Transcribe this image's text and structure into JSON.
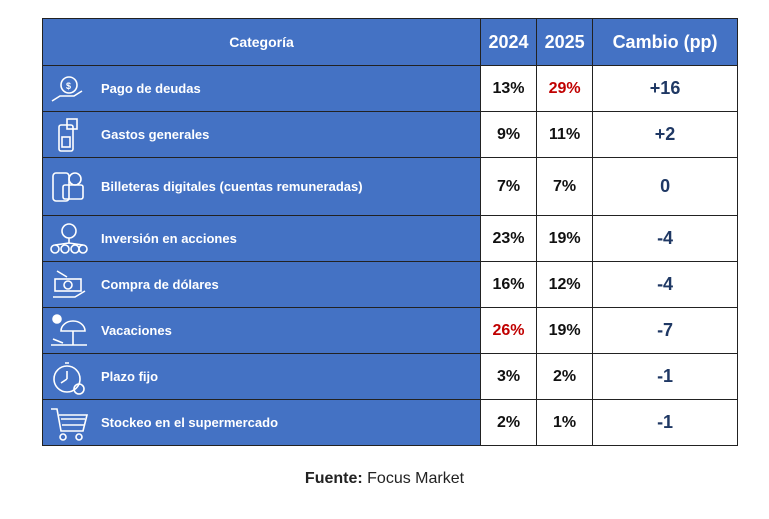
{
  "chart_data": {
    "type": "table",
    "columns": [
      "Categoría",
      "2024",
      "2025",
      "Cambio (pp)"
    ],
    "rows": [
      {
        "icon": "money-bag-hand-icon",
        "category": "Pago de deudas",
        "y2024": "13%",
        "y2025": "29%",
        "change": "+16",
        "highlight": "2025"
      },
      {
        "icon": "payment-terminal-icon",
        "category": "Gastos generales",
        "y2024": "9%",
        "y2025": "11%",
        "change": "+2"
      },
      {
        "icon": "phone-wallet-icon",
        "category": "Billeteras digitales (cuentas remuneradas)",
        "y2024": "7%",
        "y2025": "7%",
        "change": "0"
      },
      {
        "icon": "investment-network-icon",
        "category": "Inversión en acciones",
        "y2024": "23%",
        "y2025": "19%",
        "change": "-4"
      },
      {
        "icon": "cash-hand-icon",
        "category": "Compra de dólares",
        "y2024": "16%",
        "y2025": "12%",
        "change": "-4"
      },
      {
        "icon": "beach-umbrella-icon",
        "category": "Vacaciones",
        "y2024": "26%",
        "y2025": "19%",
        "change": "-7",
        "highlight": "2024"
      },
      {
        "icon": "stopwatch-dollar-icon",
        "category": "Plazo fijo",
        "y2024": "3%",
        "y2025": "2%",
        "change": "-1"
      },
      {
        "icon": "shopping-cart-icon",
        "category": "Stockeo en el supermercado",
        "y2024": "2%",
        "y2025": "1%",
        "change": "-1"
      }
    ],
    "colors": {
      "header": "#4472C4",
      "highlight": "#C00000",
      "change": "#1F3864"
    }
  },
  "source": {
    "label": "Fuente:",
    "value": "Focus Market"
  }
}
